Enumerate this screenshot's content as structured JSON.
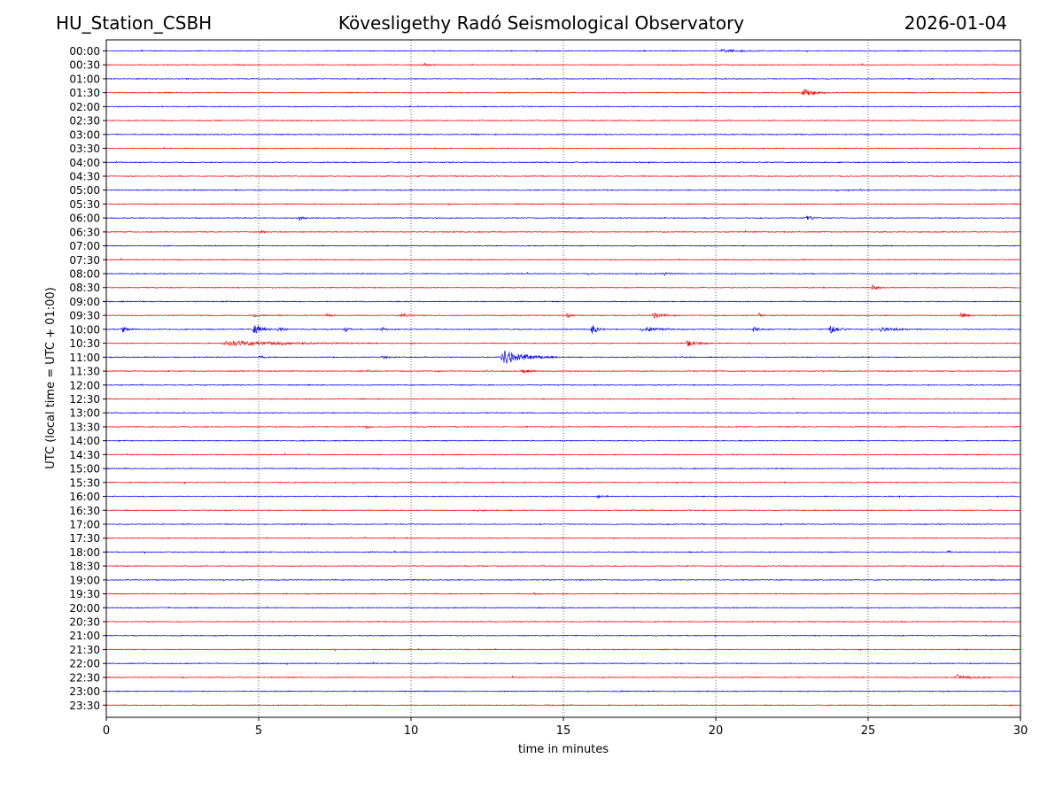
{
  "header": {
    "station": "HU_Station_CSBH",
    "observatory": "Kövesligethy Radó Seismological Observatory",
    "date": "2026-01-04"
  },
  "chart_data": {
    "type": "line",
    "title": "Kövesligethy Radó Seismological Observatory",
    "xlabel": "time in minutes",
    "ylabel": "UTC (local time = UTC + 01:00)",
    "xlim": [
      0,
      30
    ],
    "x_ticks": [
      0,
      5,
      10,
      15,
      20,
      25,
      30
    ],
    "grid": "vertical dotted at x ticks",
    "row_labels": [
      "00:00",
      "00:30",
      "01:00",
      "01:30",
      "02:00",
      "02:30",
      "03:00",
      "03:30",
      "04:00",
      "04:30",
      "05:00",
      "05:30",
      "06:00",
      "06:30",
      "07:00",
      "07:30",
      "08:00",
      "08:30",
      "09:00",
      "09:30",
      "10:00",
      "10:30",
      "11:00",
      "11:30",
      "12:00",
      "12:30",
      "13:00",
      "13:30",
      "14:00",
      "14:30",
      "15:00",
      "15:30",
      "16:00",
      "16:30",
      "17:00",
      "17:30",
      "18:00",
      "18:30",
      "19:00",
      "19:30",
      "20:00",
      "20:30",
      "21:00",
      "21:30",
      "22:00",
      "22:30",
      "23:00",
      "23:30"
    ],
    "colors": [
      "#0000ff",
      "#ff0000"
    ],
    "noise_level": 0.6,
    "events": [
      {
        "row": 0,
        "start": 20.1,
        "dur": 1.8,
        "amp": 1.6
      },
      {
        "row": 1,
        "start": 10.4,
        "dur": 0.6,
        "amp": 1.3
      },
      {
        "row": 3,
        "start": 22.8,
        "dur": 1.0,
        "amp": 4.5
      },
      {
        "row": 12,
        "start": 6.3,
        "dur": 0.5,
        "amp": 2.2
      },
      {
        "row": 12,
        "start": 22.9,
        "dur": 1.0,
        "amp": 2.0
      },
      {
        "row": 13,
        "start": 5.0,
        "dur": 0.4,
        "amp": 1.8
      },
      {
        "row": 16,
        "start": 18.3,
        "dur": 0.4,
        "amp": 2.0
      },
      {
        "row": 17,
        "start": 25.1,
        "dur": 0.5,
        "amp": 2.6
      },
      {
        "row": 19,
        "start": 4.8,
        "dur": 0.5,
        "amp": 1.8
      },
      {
        "row": 19,
        "start": 7.2,
        "dur": 0.4,
        "amp": 2.0
      },
      {
        "row": 19,
        "start": 9.6,
        "dur": 0.6,
        "amp": 2.4
      },
      {
        "row": 19,
        "start": 15.1,
        "dur": 0.3,
        "amp": 3.0
      },
      {
        "row": 19,
        "start": 17.9,
        "dur": 0.9,
        "amp": 3.2
      },
      {
        "row": 19,
        "start": 21.4,
        "dur": 0.3,
        "amp": 2.6
      },
      {
        "row": 19,
        "start": 28.0,
        "dur": 0.6,
        "amp": 2.8
      },
      {
        "row": 20,
        "start": 0.5,
        "dur": 0.5,
        "amp": 3.0
      },
      {
        "row": 20,
        "start": 4.8,
        "dur": 0.7,
        "amp": 6.5
      },
      {
        "row": 20,
        "start": 5.6,
        "dur": 0.5,
        "amp": 3.4
      },
      {
        "row": 20,
        "start": 7.8,
        "dur": 0.4,
        "amp": 2.4
      },
      {
        "row": 20,
        "start": 9.0,
        "dur": 0.5,
        "amp": 2.0
      },
      {
        "row": 20,
        "start": 15.9,
        "dur": 0.5,
        "amp": 6.0
      },
      {
        "row": 20,
        "start": 17.5,
        "dur": 1.5,
        "amp": 2.6
      },
      {
        "row": 20,
        "start": 21.2,
        "dur": 0.5,
        "amp": 2.8
      },
      {
        "row": 20,
        "start": 23.7,
        "dur": 0.8,
        "amp": 4.5
      },
      {
        "row": 20,
        "start": 25.3,
        "dur": 1.5,
        "amp": 2.2
      },
      {
        "row": 21,
        "start": 3.7,
        "dur": 5.2,
        "amp": 2.6
      },
      {
        "row": 21,
        "start": 19.0,
        "dur": 1.0,
        "amp": 3.4
      },
      {
        "row": 22,
        "start": 5.0,
        "dur": 0.4,
        "amp": 2.2
      },
      {
        "row": 22,
        "start": 9.0,
        "dur": 0.5,
        "amp": 2.0
      },
      {
        "row": 22,
        "start": 12.9,
        "dur": 1.9,
        "amp": 8.5
      },
      {
        "row": 23,
        "start": 13.6,
        "dur": 0.7,
        "amp": 2.8
      },
      {
        "row": 27,
        "start": 8.5,
        "dur": 0.3,
        "amp": 1.8
      },
      {
        "row": 32,
        "start": 16.1,
        "dur": 0.4,
        "amp": 1.8
      },
      {
        "row": 36,
        "start": 27.6,
        "dur": 0.3,
        "amp": 1.6
      },
      {
        "row": 45,
        "start": 27.8,
        "dur": 1.4,
        "amp": 3.2
      }
    ]
  }
}
